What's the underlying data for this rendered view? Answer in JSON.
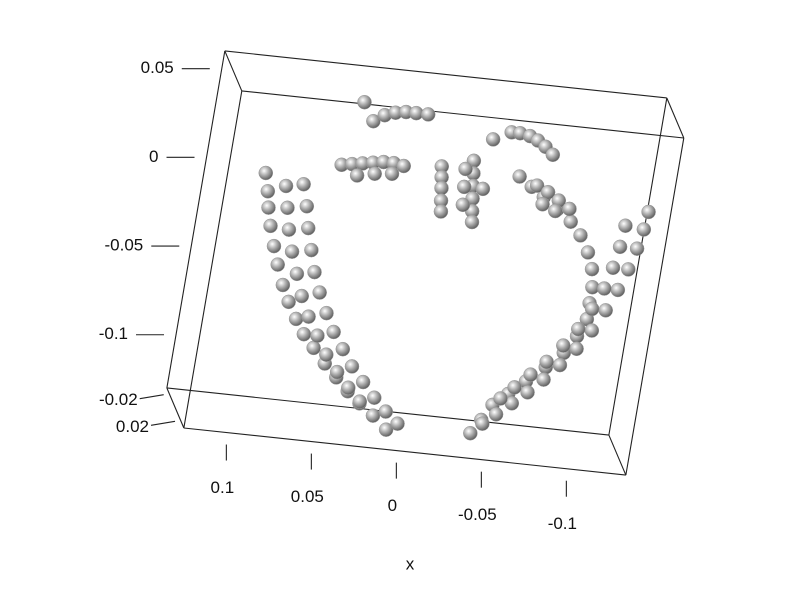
{
  "chart_data": {
    "type": "scatter3d",
    "x_label": "x",
    "color": "#9a9a9a",
    "xlim": [
      0.125,
      -0.135
    ],
    "ylim": [
      -0.13,
      0.06
    ],
    "zlim": [
      -0.03,
      0.03
    ],
    "xticks": [
      0.1,
      0.05,
      0,
      -0.05,
      -0.1
    ],
    "yticks": [
      0.05,
      0,
      -0.05,
      -0.1
    ],
    "zticks": [
      -0.02,
      0.02
    ],
    "x": [
      0.103,
      0.1,
      0.098,
      0.095,
      0.091,
      0.087,
      0.082,
      0.077,
      0.071,
      0.065,
      0.058,
      0.05,
      0.042,
      0.034,
      0.026,
      0.017,
      0.008,
      0.08,
      0.076,
      0.073,
      0.069,
      0.065,
      0.06,
      0.054,
      0.048,
      0.041,
      0.034,
      0.026,
      0.018,
      0.01,
      0.002,
      0.09,
      0.087,
      0.084,
      0.08,
      0.075,
      0.07,
      0.064,
      0.057,
      0.05,
      0.042,
      0.034,
      0.026,
      0.06,
      0.054,
      0.048,
      0.042,
      0.036,
      0.03,
      0.024,
      0.05,
      0.04,
      0.03,
      0.046,
      0.04,
      0.034,
      0.028,
      0.022,
      0.015,
      0.053,
      0.002,
      0.001,
      0,
      -0.001,
      -0.002,
      -0.016,
      -0.017,
      -0.018,
      -0.019,
      -0.02,
      -0.021,
      -0.012,
      -0.013,
      -0.014,
      -0.024,
      -0.035,
      -0.04,
      -0.046,
      -0.051,
      -0.056,
      -0.061,
      -0.025,
      -0.044,
      -0.052,
      -0.06,
      -0.069,
      -0.078,
      -0.085,
      -0.091,
      -0.095,
      -0.097,
      -0.097,
      -0.097,
      -0.093,
      -0.087,
      -0.078,
      -0.068,
      -0.059,
      -0.051,
      -0.046,
      -0.041,
      -0.122,
      -0.121,
      -0.119,
      -0.116,
      -0.112,
      -0.107,
      -0.101,
      -0.094,
      -0.086,
      -0.078,
      -0.07,
      -0.062,
      -0.054,
      -0.047,
      -0.11,
      -0.109,
      -0.107,
      -0.104,
      -0.099,
      -0.093,
      -0.086,
      -0.078,
      -0.07,
      -0.062,
      -0.055,
      -0.055,
      -0.062,
      -0.069,
      -0.076,
      -0.06,
      -0.068
    ],
    "y": [
      0.016,
      0.006,
      -0.003,
      -0.013,
      -0.024,
      -0.034,
      -0.045,
      -0.054,
      -0.063,
      -0.071,
      -0.078,
      -0.086,
      -0.093,
      -0.1,
      -0.106,
      -0.112,
      -0.119,
      0.012,
      0,
      -0.012,
      -0.024,
      -0.036,
      -0.047,
      -0.058,
      -0.068,
      -0.077,
      -0.086,
      -0.094,
      -0.102,
      -0.109,
      -0.115,
      0.01,
      -0.002,
      -0.014,
      -0.026,
      -0.038,
      -0.05,
      -0.061,
      -0.071,
      -0.081,
      -0.09,
      -0.098,
      -0.105,
      0.025,
      0.026,
      0.027,
      0.028,
      0.029,
      0.029,
      0.028,
      0.02,
      0.022,
      0.023,
      0.051,
      0.055,
      0.057,
      0.058,
      0.058,
      0.058,
      0.061,
      0.03,
      0.024,
      0.018,
      0.011,
      0.005,
      0.035,
      0.028,
      0.021,
      0.014,
      0.007,
      0.001,
      0.03,
      0.02,
      0.01,
      0.02,
      0.053,
      0.053,
      0.052,
      0.05,
      0.047,
      0.043,
      0.048,
      0.029,
      0.024,
      0.019,
      0.013,
      0.007,
      0,
      -0.009,
      -0.018,
      -0.028,
      -0.037,
      -0.046,
      -0.056,
      -0.066,
      -0.075,
      -0.084,
      -0.092,
      -0.099,
      -0.108,
      -0.116,
      0.017,
      0.007,
      -0.004,
      -0.016,
      -0.028,
      -0.04,
      -0.052,
      -0.063,
      -0.073,
      -0.082,
      -0.09,
      -0.097,
      -0.104,
      -0.11,
      0.008,
      -0.004,
      -0.016,
      -0.028,
      -0.04,
      -0.052,
      -0.062,
      -0.072,
      -0.08,
      -0.088,
      -0.095,
      0.025,
      0.022,
      0.018,
      0.014,
      0.015,
      0.012
    ]
  }
}
